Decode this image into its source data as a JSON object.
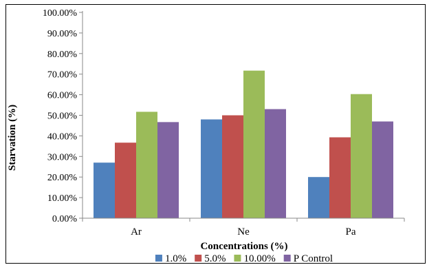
{
  "chart_data": {
    "type": "bar",
    "title": "",
    "xlabel": "Concentrations (%)",
    "ylabel": "Starvation (%)",
    "categories": [
      "Ar",
      "Ne",
      "Pa"
    ],
    "ylim": [
      0,
      100
    ],
    "yticks": [
      "0.00%",
      "10.00%",
      "20.00%",
      "30.00%",
      "40.00%",
      "50.00%",
      "60.00%",
      "70.00%",
      "80.00%",
      "90.00%",
      "100.00%"
    ],
    "grid": false,
    "legend_position": "bottom",
    "series": [
      {
        "name": "1.0%",
        "color": "#4F81BD",
        "values": [
          27.0,
          48.0,
          20.0
        ]
      },
      {
        "name": "5.0%",
        "color": "#C0504D",
        "values": [
          36.7,
          50.0,
          39.3
        ]
      },
      {
        "name": "10.00%",
        "color": "#9BBB59",
        "values": [
          51.7,
          71.7,
          60.3
        ]
      },
      {
        "name": "P Control",
        "color": "#8064A2",
        "values": [
          46.7,
          53.0,
          47.0
        ]
      }
    ]
  }
}
